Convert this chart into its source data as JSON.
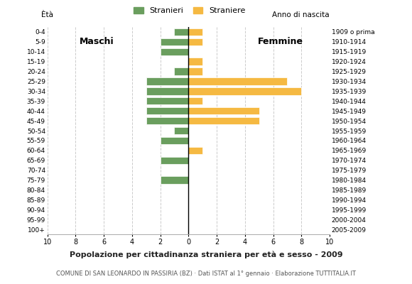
{
  "age_groups": [
    "0-4",
    "5-9",
    "10-14",
    "15-19",
    "20-24",
    "25-29",
    "30-34",
    "35-39",
    "40-44",
    "45-49",
    "50-54",
    "55-59",
    "60-64",
    "65-69",
    "70-74",
    "75-79",
    "80-84",
    "85-89",
    "90-94",
    "95-99",
    "100+"
  ],
  "birth_years": [
    "2005-2009",
    "2000-2004",
    "1995-1999",
    "1990-1994",
    "1985-1989",
    "1980-1984",
    "1975-1979",
    "1970-1974",
    "1965-1969",
    "1960-1964",
    "1955-1959",
    "1950-1954",
    "1945-1949",
    "1940-1944",
    "1935-1939",
    "1930-1934",
    "1925-1929",
    "1920-1924",
    "1915-1919",
    "1910-1914",
    "1909 o prima"
  ],
  "males": [
    1,
    2,
    2,
    0,
    1,
    3,
    3,
    3,
    3,
    3,
    1,
    2,
    0,
    2,
    0,
    2,
    0,
    0,
    0,
    0,
    0
  ],
  "females": [
    1,
    1,
    0,
    1,
    1,
    7,
    8,
    1,
    5,
    5,
    0,
    0,
    1,
    0,
    0,
    0,
    0,
    0,
    0,
    0,
    0
  ],
  "male_color": "#6a9e5e",
  "female_color": "#f5b942",
  "title": "Popolazione per cittadinanza straniera per età e sesso - 2009",
  "subtitle": "COMUNE DI SAN LEONARDO IN PASSIRIA (BZ) · Dati ISTAT al 1° gennaio · Elaborazione TUTTITALIA.IT",
  "legend_male": "Stranieri",
  "legend_female": "Straniere",
  "label_maschi": "Maschi",
  "label_femmine": "Femmine",
  "eta_label": "Ètà",
  "anno_label": "Anno di nascita",
  "xlim": 10,
  "xtick_labels": [
    "10",
    "8",
    "6",
    "4",
    "2",
    "0",
    "2",
    "4",
    "6",
    "8",
    "10"
  ],
  "xtick_vals": [
    -10,
    -8,
    -6,
    -4,
    -2,
    0,
    2,
    4,
    6,
    8,
    10
  ],
  "background_color": "#ffffff",
  "bar_height": 0.75
}
